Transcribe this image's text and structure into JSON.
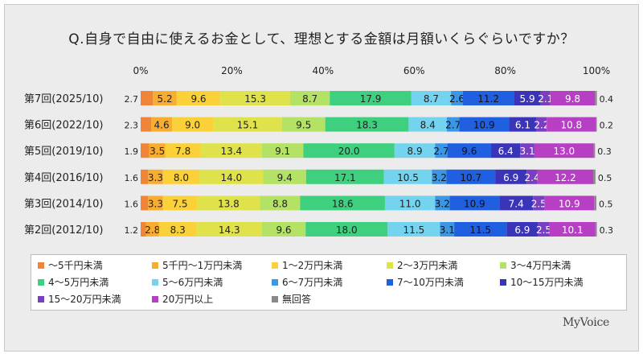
{
  "title": "Q.自身で自由に使えるお金として、理想とする金額は月額いくらぐらいですか？",
  "brand": "MyVoice",
  "chart_data": {
    "type": "bar",
    "orientation": "horizontal",
    "stacked": "percent",
    "title": "Q.自身で自由に使えるお金として、理想とする金額は月額いくらぐらいですか？",
    "xlim": [
      0,
      100
    ],
    "x_ticks": [
      "0%",
      "20%",
      "40%",
      "60%",
      "80%",
      "100%"
    ],
    "categories": [
      "第7回(2025/10)",
      "第6回(2022/10)",
      "第5回(2019/10)",
      "第4回(2016/10)",
      "第3回(2014/10)",
      "第2回(2012/10)"
    ],
    "series": [
      {
        "name": "～5千円未満",
        "color": "#f0853a",
        "values": [
          2.7,
          2.3,
          1.9,
          1.6,
          1.6,
          1.2
        ]
      },
      {
        "name": "5千円～1万円未満",
        "color": "#f8ac30",
        "values": [
          5.2,
          4.6,
          3.5,
          3.3,
          3.3,
          2.8
        ]
      },
      {
        "name": "1～2万円未満",
        "color": "#fbd13a",
        "values": [
          9.6,
          9.0,
          7.8,
          8.0,
          7.5,
          8.3
        ]
      },
      {
        "name": "2～3万円未満",
        "color": "#dfe24a",
        "values": [
          15.3,
          15.1,
          13.4,
          14.0,
          13.8,
          14.3
        ]
      },
      {
        "name": "3～4万円未満",
        "color": "#b3e265",
        "values": [
          8.7,
          9.5,
          9.1,
          9.4,
          8.8,
          9.6
        ]
      },
      {
        "name": "4～5万円未満",
        "color": "#3ecf7f",
        "values": [
          17.9,
          18.3,
          20.0,
          17.1,
          18.6,
          18.0
        ]
      },
      {
        "name": "5～6万円未満",
        "color": "#74d3ee",
        "values": [
          8.7,
          8.4,
          8.9,
          10.5,
          11.0,
          11.5
        ]
      },
      {
        "name": "6～7万円未満",
        "color": "#3b97e5",
        "values": [
          2.6,
          2.7,
          2.7,
          3.2,
          3.2,
          3.1
        ]
      },
      {
        "name": "7～10万円未満",
        "color": "#1f5fe0",
        "values": [
          11.2,
          10.9,
          9.6,
          10.7,
          10.9,
          11.5
        ]
      },
      {
        "name": "10～15万円未満",
        "color": "#3a35b8",
        "values": [
          5.9,
          6.1,
          6.4,
          6.9,
          7.4,
          6.9
        ]
      },
      {
        "name": "15～20万円未満",
        "color": "#7a3fc0",
        "values": [
          2.1,
          2.2,
          3.1,
          2.4,
          2.5,
          2.5
        ]
      },
      {
        "name": "20万円以上",
        "color": "#b73fc4",
        "values": [
          9.8,
          10.8,
          13.0,
          12.2,
          10.9,
          10.1
        ]
      },
      {
        "name": "無回答",
        "color": "#8a8a8a",
        "values": [
          0.4,
          0.2,
          0.3,
          0.5,
          0.5,
          0.3
        ]
      }
    ],
    "labels": [
      [
        "2.7",
        "5.2",
        "9.6",
        "15.3",
        "8.7",
        "17.9",
        "8.7",
        "2.6",
        "11.2",
        "5.9",
        "2.1",
        "9.8",
        "0.4"
      ],
      [
        "2.3",
        "4.6",
        "9.0",
        "15.1",
        "9.5",
        "18.3",
        "8.4",
        "2.7",
        "10.9",
        "6.1",
        "2.2",
        "10.8",
        "0.2"
      ],
      [
        "1.9",
        "3.5",
        "7.8",
        "13.4",
        "9.1",
        "20.0",
        "8.9",
        "2.7",
        "9.6",
        "6.4",
        "3.1",
        "13.0",
        "0.3"
      ],
      [
        "1.6",
        "3.3",
        "8.0",
        "14.0",
        "9.4",
        "17.1",
        "10.5",
        "3.2",
        "10.7",
        "6.9",
        "2.4",
        "12.2",
        "0.5"
      ],
      [
        "1.6",
        "3.3",
        "7.5",
        "13.8",
        "8.8",
        "18.6",
        "11.0",
        "3.2",
        "10.9",
        "7.4",
        "2.5",
        "10.9",
        "0.5"
      ],
      [
        "1.2",
        "2.8",
        "8.3",
        "14.3",
        "9.6",
        "18.0",
        "11.5",
        "3.1",
        "11.5",
        "6.9",
        "2.5",
        "10.1",
        "0.3"
      ]
    ],
    "legend_position": "bottom",
    "grid": false
  }
}
